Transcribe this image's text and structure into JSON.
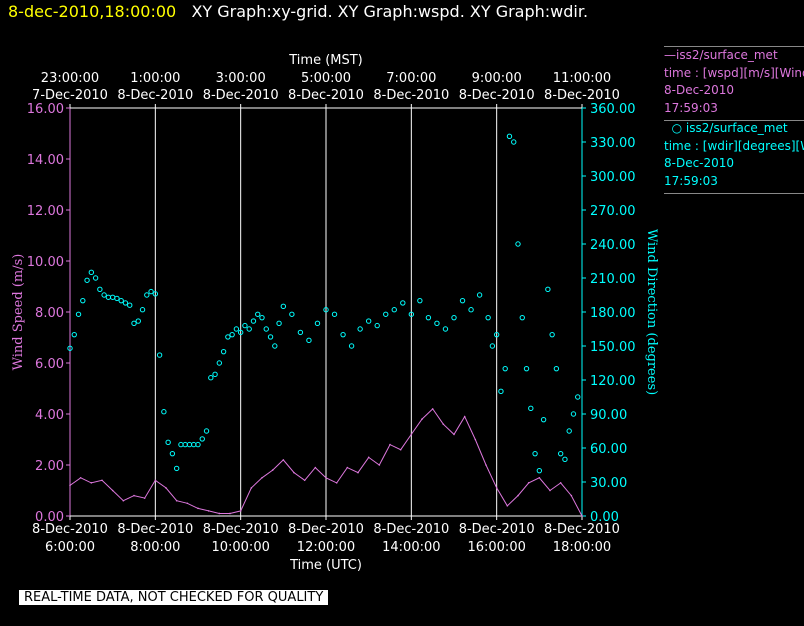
{
  "header": {
    "timestamp": "8-dec-2010,18:00:00",
    "graphs": "XY Graph:xy-grid.  XY Graph:wspd.  XY Graph:wdir."
  },
  "legend": {
    "wspd": {
      "name": "iss2/surface_met",
      "line1": "time : [wspd][m/s][Wind Speed]",
      "line2": "8-Dec-2010",
      "line3": "17:59:03",
      "color": "#dd77dd"
    },
    "wdir": {
      "name": "iss2/surface_met",
      "line1": "time : [wdir][degrees][Wind Direction]",
      "line2": "8-Dec-2010",
      "line3": "17:59:03",
      "color": "#00ffff"
    }
  },
  "footer": {
    "quality_note": "REAL-TIME DATA, NOT CHECKED FOR QUALITY"
  },
  "chart_data": {
    "type": "line",
    "top_axis": {
      "label": "Time (MST)",
      "ticks": [
        {
          "time": "23:00:00",
          "date": "7-Dec-2010"
        },
        {
          "time": "1:00:00",
          "date": "8-Dec-2010"
        },
        {
          "time": "3:00:00",
          "date": "8-Dec-2010"
        },
        {
          "time": "5:00:00",
          "date": "8-Dec-2010"
        },
        {
          "time": "7:00:00",
          "date": "8-Dec-2010"
        },
        {
          "time": "9:00:00",
          "date": "8-Dec-2010"
        },
        {
          "time": "11:00:00",
          "date": "8-Dec-2010"
        }
      ]
    },
    "bottom_axis": {
      "label": "Time (UTC)",
      "ticks": [
        {
          "date": "8-Dec-2010",
          "time": "6:00:00"
        },
        {
          "date": "8-Dec-2010",
          "time": "8:00:00"
        },
        {
          "date": "8-Dec-2010",
          "time": "10:00:00"
        },
        {
          "date": "8-Dec-2010",
          "time": "12:00:00"
        },
        {
          "date": "8-Dec-2010",
          "time": "14:00:00"
        },
        {
          "date": "8-Dec-2010",
          "time": "16:00:00"
        },
        {
          "date": "8-Dec-2010",
          "time": "18:00:00"
        }
      ],
      "xlim_utc_hours": [
        6.0,
        18.0
      ]
    },
    "left_axis": {
      "label": "Wind Speed (m/s)",
      "ylim": [
        0,
        16
      ],
      "ticks": [
        "0.00",
        "2.00",
        "4.00",
        "6.00",
        "8.00",
        "10.00",
        "12.00",
        "14.00",
        "16.00"
      ]
    },
    "right_axis": {
      "label": "Wind Direction (degrees)",
      "ylim": [
        0,
        360
      ],
      "ticks": [
        "0.00",
        "30.00",
        "60.00",
        "90.00",
        "120.00",
        "150.00",
        "180.00",
        "210.00",
        "240.00",
        "270.00",
        "300.00",
        "330.00",
        "360.00"
      ]
    },
    "grid": "vertical lines at bottom ticks",
    "series": [
      {
        "name": "wspd",
        "style": "line",
        "axis": "left",
        "color": "#dd77dd",
        "x": [
          6.0,
          6.25,
          6.5,
          6.75,
          7.0,
          7.25,
          7.5,
          7.75,
          8.0,
          8.25,
          8.5,
          8.75,
          9.0,
          9.25,
          9.5,
          9.75,
          10.0,
          10.25,
          10.5,
          10.75,
          11.0,
          11.25,
          11.5,
          11.75,
          12.0,
          12.25,
          12.5,
          12.75,
          13.0,
          13.25,
          13.5,
          13.75,
          14.0,
          14.25,
          14.5,
          14.75,
          15.0,
          15.25,
          15.5,
          15.75,
          16.0,
          16.25,
          16.5,
          16.75,
          17.0,
          17.25,
          17.5,
          17.75,
          18.0
        ],
        "values": [
          1.2,
          1.5,
          1.3,
          1.4,
          1.0,
          0.6,
          0.8,
          0.7,
          1.4,
          1.1,
          0.6,
          0.5,
          0.3,
          0.2,
          0.1,
          0.1,
          0.2,
          1.1,
          1.5,
          1.8,
          2.2,
          1.7,
          1.4,
          1.9,
          1.5,
          1.3,
          1.9,
          1.7,
          2.3,
          2.0,
          2.8,
          2.6,
          3.2,
          3.8,
          4.2,
          3.6,
          3.2,
          3.9,
          3.0,
          2.0,
          1.1,
          0.4,
          0.8,
          1.3,
          1.5,
          1.0,
          1.3,
          0.8,
          0.0
        ]
      },
      {
        "name": "wdir",
        "style": "points",
        "axis": "right",
        "color": "#00ffff",
        "x": [
          6.0,
          6.1,
          6.2,
          6.3,
          6.4,
          6.5,
          6.6,
          6.7,
          6.8,
          6.9,
          7.0,
          7.1,
          7.2,
          7.3,
          7.4,
          7.5,
          7.6,
          7.7,
          7.8,
          7.9,
          8.0,
          8.1,
          8.2,
          8.3,
          8.4,
          8.5,
          8.6,
          8.7,
          8.8,
          8.9,
          9.0,
          9.1,
          9.2,
          9.3,
          9.4,
          9.5,
          9.6,
          9.7,
          9.8,
          9.9,
          10.0,
          10.1,
          10.2,
          10.3,
          10.4,
          10.5,
          10.6,
          10.7,
          10.8,
          10.9,
          11.0,
          11.2,
          11.4,
          11.6,
          11.8,
          12.0,
          12.2,
          12.4,
          12.6,
          12.8,
          13.0,
          13.2,
          13.4,
          13.6,
          13.8,
          14.0,
          14.2,
          14.4,
          14.6,
          14.8,
          15.0,
          15.2,
          15.4,
          15.6,
          15.8,
          15.9,
          16.0,
          16.1,
          16.2,
          16.3,
          16.4,
          16.5,
          16.6,
          16.7,
          16.8,
          16.9,
          17.0,
          17.1,
          17.2,
          17.3,
          17.4,
          17.5,
          17.6,
          17.7,
          17.8,
          17.9
        ],
        "values": [
          148,
          160,
          178,
          190,
          208,
          215,
          210,
          200,
          195,
          193,
          193,
          192,
          190,
          188,
          186,
          170,
          172,
          182,
          195,
          198,
          196,
          142,
          92,
          65,
          55,
          42,
          63,
          63,
          63,
          63,
          63,
          68,
          75,
          122,
          125,
          135,
          145,
          158,
          160,
          165,
          162,
          168,
          165,
          172,
          178,
          175,
          165,
          158,
          150,
          170,
          185,
          178,
          162,
          155,
          170,
          182,
          178,
          160,
          150,
          165,
          172,
          168,
          178,
          182,
          188,
          178,
          190,
          175,
          170,
          165,
          175,
          190,
          182,
          195,
          175,
          150,
          160,
          110,
          130,
          335,
          330,
          240,
          175,
          130,
          95,
          55,
          40,
          85,
          200,
          160,
          130,
          55,
          50,
          75,
          90,
          105
        ]
      }
    ]
  }
}
